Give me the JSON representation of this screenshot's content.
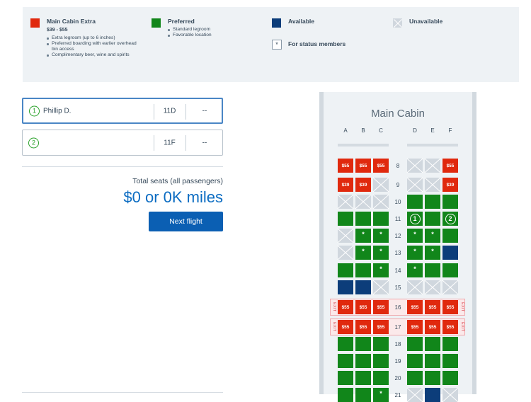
{
  "legend": {
    "main_cabin_extra": {
      "title": "Main Cabin Extra",
      "price": "$39 - $55",
      "bullets": [
        "Extra legroom (up to 6 inches)",
        "Preferred boarding with earlier overhead bin access",
        "Complimentary beer, wine and spirits"
      ],
      "color": "#e0290e"
    },
    "preferred": {
      "title": "Preferred",
      "bullets": [
        "Standard legroom",
        "Favorable location"
      ],
      "color": "#11861a"
    },
    "available": {
      "title": "Available",
      "color": "#0c3d7a"
    },
    "unavailable": {
      "title": "Unavailable",
      "color": "#d0d7de"
    },
    "status": {
      "symbol": "*",
      "title": "For status members"
    }
  },
  "passengers": [
    {
      "number": "1",
      "name": "Phillip D.",
      "seat": "11D",
      "price": "--",
      "active": true
    },
    {
      "number": "2",
      "name": "",
      "seat": "11F",
      "price": "--",
      "active": false
    }
  ],
  "summary": {
    "total_label": "Total seats (all passengers)",
    "total_value": "$0 or 0K miles",
    "next_button": "Next flight"
  },
  "seatmap": {
    "title": "Main Cabin",
    "columns": [
      "A",
      "B",
      "C",
      "D",
      "E",
      "F"
    ],
    "exit_label": "EXIT",
    "rows": [
      {
        "num": "8",
        "seats": [
          [
            "extra",
            "$55"
          ],
          [
            "extra",
            "$55"
          ],
          [
            "extra",
            "$55"
          ],
          [
            "unav",
            ""
          ],
          [
            "unav",
            ""
          ],
          [
            "extra",
            "$55"
          ]
        ]
      },
      {
        "num": "9",
        "seats": [
          [
            "extra",
            "$39"
          ],
          [
            "extra",
            "$39"
          ],
          [
            "unav",
            ""
          ],
          [
            "unav",
            ""
          ],
          [
            "unav",
            ""
          ],
          [
            "extra",
            "$39"
          ]
        ]
      },
      {
        "num": "10",
        "seats": [
          [
            "unav",
            ""
          ],
          [
            "unav",
            ""
          ],
          [
            "unav",
            ""
          ],
          [
            "pref",
            ""
          ],
          [
            "pref",
            ""
          ],
          [
            "pref",
            ""
          ]
        ]
      },
      {
        "num": "11",
        "seats": [
          [
            "pref",
            ""
          ],
          [
            "pref",
            ""
          ],
          [
            "pref",
            ""
          ],
          [
            "sel",
            "1"
          ],
          [
            "pref",
            ""
          ],
          [
            "sel",
            "2"
          ]
        ]
      },
      {
        "num": "12",
        "seats": [
          [
            "unav",
            ""
          ],
          [
            "pref",
            "*"
          ],
          [
            "pref",
            "*"
          ],
          [
            "pref",
            "*"
          ],
          [
            "pref",
            "*"
          ],
          [
            "pref",
            ""
          ]
        ]
      },
      {
        "num": "13",
        "seats": [
          [
            "unav",
            ""
          ],
          [
            "pref",
            "*"
          ],
          [
            "pref",
            "*"
          ],
          [
            "pref",
            "*"
          ],
          [
            "pref",
            "*"
          ],
          [
            "avail",
            ""
          ]
        ]
      },
      {
        "num": "14",
        "seats": [
          [
            "pref",
            ""
          ],
          [
            "pref",
            ""
          ],
          [
            "pref",
            "*"
          ],
          [
            "pref",
            "*"
          ],
          [
            "pref",
            ""
          ],
          [
            "pref",
            ""
          ]
        ]
      },
      {
        "num": "15",
        "seats": [
          [
            "avail",
            ""
          ],
          [
            "avail",
            ""
          ],
          [
            "unav",
            ""
          ],
          [
            "unav",
            ""
          ],
          [
            "unav",
            ""
          ],
          [
            "unav",
            ""
          ]
        ]
      },
      {
        "num": "16",
        "exit": true,
        "seats": [
          [
            "extra",
            "$55"
          ],
          [
            "extra",
            "$55"
          ],
          [
            "extra",
            "$55"
          ],
          [
            "extra",
            "$55"
          ],
          [
            "extra",
            "$55"
          ],
          [
            "extra",
            "$55"
          ]
        ]
      },
      {
        "num": "17",
        "exit": true,
        "seats": [
          [
            "extra",
            "$55"
          ],
          [
            "extra",
            "$55"
          ],
          [
            "extra",
            "$55"
          ],
          [
            "extra",
            "$55"
          ],
          [
            "extra",
            "$55"
          ],
          [
            "extra",
            "$55"
          ]
        ]
      },
      {
        "num": "18",
        "seats": [
          [
            "pref",
            ""
          ],
          [
            "pref",
            ""
          ],
          [
            "pref",
            ""
          ],
          [
            "pref",
            ""
          ],
          [
            "pref",
            ""
          ],
          [
            "pref",
            ""
          ]
        ]
      },
      {
        "num": "19",
        "seats": [
          [
            "pref",
            ""
          ],
          [
            "pref",
            ""
          ],
          [
            "pref",
            ""
          ],
          [
            "pref",
            ""
          ],
          [
            "pref",
            ""
          ],
          [
            "pref",
            ""
          ]
        ]
      },
      {
        "num": "20",
        "seats": [
          [
            "pref",
            ""
          ],
          [
            "pref",
            ""
          ],
          [
            "pref",
            ""
          ],
          [
            "pref",
            ""
          ],
          [
            "pref",
            ""
          ],
          [
            "pref",
            ""
          ]
        ]
      },
      {
        "num": "21",
        "seats": [
          [
            "pref",
            ""
          ],
          [
            "pref",
            ""
          ],
          [
            "pref",
            "*"
          ],
          [
            "unav",
            ""
          ],
          [
            "avail",
            ""
          ],
          [
            "unav",
            ""
          ]
        ]
      }
    ]
  }
}
